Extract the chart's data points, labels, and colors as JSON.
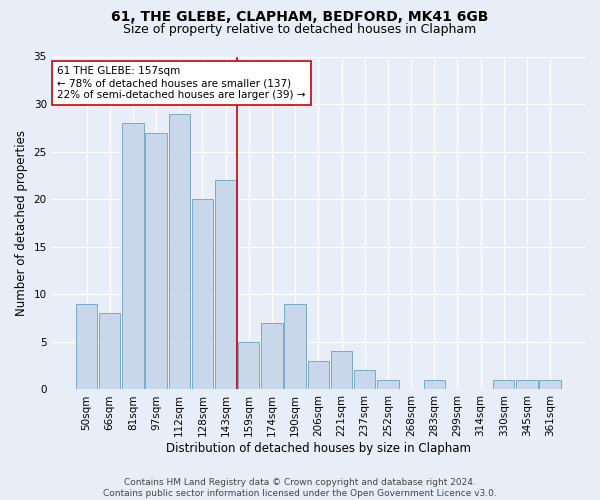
{
  "title1": "61, THE GLEBE, CLAPHAM, BEDFORD, MK41 6GB",
  "title2": "Size of property relative to detached houses in Clapham",
  "xlabel": "Distribution of detached houses by size in Clapham",
  "ylabel": "Number of detached properties",
  "categories": [
    "50sqm",
    "66sqm",
    "81sqm",
    "97sqm",
    "112sqm",
    "128sqm",
    "143sqm",
    "159sqm",
    "174sqm",
    "190sqm",
    "206sqm",
    "221sqm",
    "237sqm",
    "252sqm",
    "268sqm",
    "283sqm",
    "299sqm",
    "314sqm",
    "330sqm",
    "345sqm",
    "361sqm"
  ],
  "values": [
    9,
    8,
    28,
    27,
    29,
    20,
    22,
    5,
    7,
    9,
    3,
    4,
    2,
    1,
    0,
    1,
    0,
    0,
    1,
    1,
    1
  ],
  "bar_color": "#c8d8ea",
  "bar_edge_color": "#7aaac8",
  "annotation_text_line1": "61 THE GLEBE: 157sqm",
  "annotation_text_line2": "← 78% of detached houses are smaller (137)",
  "annotation_text_line3": "22% of semi-detached houses are larger (39) →",
  "vline_color": "#cc0000",
  "vline_x": 6.5,
  "ylim": [
    0,
    35
  ],
  "yticks": [
    0,
    5,
    10,
    15,
    20,
    25,
    30,
    35
  ],
  "bg_color": "#e8eef8",
  "footer1": "Contains HM Land Registry data © Crown copyright and database right 2024.",
  "footer2": "Contains public sector information licensed under the Open Government Licence v3.0.",
  "annotation_box_color": "#ffffff",
  "annotation_box_edge": "#cc0000",
  "title1_fontsize": 10,
  "title2_fontsize": 9,
  "xlabel_fontsize": 8.5,
  "ylabel_fontsize": 8.5,
  "tick_fontsize": 7.5,
  "annotation_fontsize": 7.5,
  "footer_fontsize": 6.5
}
